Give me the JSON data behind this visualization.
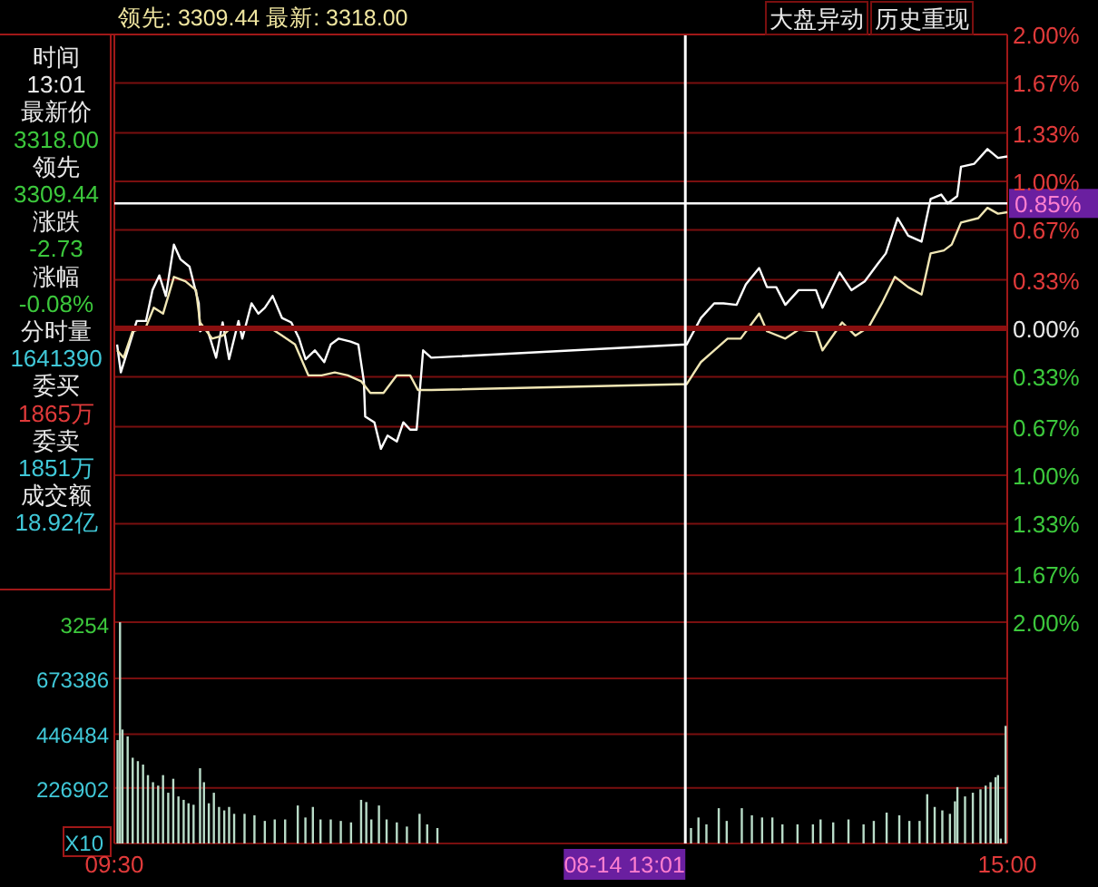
{
  "chart_data": [
    {
      "type": "line",
      "title": "领先: 3309.44 最新: 3318.00",
      "annotations": [
        "大盘异动",
        "历史重现",
        "时间",
        "13:01",
        "最新价",
        "3318.00",
        "领先",
        "3309.44",
        "涨跌",
        "-2.73",
        "涨幅",
        "-0.08%",
        "分时量",
        "1641390",
        "委买",
        "1865万",
        "委卖",
        "1851万",
        "成交额",
        "18.92亿"
      ],
      "xlim": [
        9.5,
        15
      ],
      "ylim": [
        -2,
        2
      ],
      "tick_labels": "y",
      "grid": "y",
      "yticks": [
        {
          "value": 2,
          "label": "2.00%"
        },
        {
          "value": 1.67,
          "label": "1.67%"
        },
        {
          "value": 1.33,
          "label": "1.33%"
        },
        {
          "value": 1,
          "label": "1.00%"
        },
        {
          "value": 0.67,
          "label": "0.67%"
        },
        {
          "value": 0.33,
          "label": "0.33%"
        },
        {
          "value": 0,
          "label": "0.00%"
        },
        {
          "value": -0.33,
          "label": "0.33%"
        },
        {
          "value": -0.67,
          "label": "0.67%"
        },
        {
          "value": -1,
          "label": "1.00%"
        },
        {
          "value": -1.33,
          "label": "1.33%"
        },
        {
          "value": -1.67,
          "label": "1.67%"
        },
        {
          "value": -2,
          "label": "2.00%"
        }
      ],
      "ref_lines": [
        {
          "axis": "y",
          "value": 0,
          "color": "#8b1010"
        },
        {
          "axis": "y",
          "value": 0.85,
          "label": "0.85%",
          "color": "#ffffff"
        },
        {
          "axis": "x",
          "value": 13.017,
          "color": "#ffffff"
        }
      ],
      "series": [
        {
          "color": "#ffffff",
          "x": [
            9.517,
            9.54,
            9.582,
            9.638,
            9.695,
            9.735,
            9.777,
            9.817,
            9.867,
            9.907,
            9.963,
            10.02,
            10.028,
            10.068,
            10.127,
            10.167,
            10.207,
            10.265,
            10.288,
            10.345,
            10.387,
            10.427,
            10.475,
            10.533,
            10.59,
            10.638,
            10.678,
            10.735,
            10.793,
            10.833,
            10.882,
            10.955,
            11.003,
            11.037,
            11.045,
            11.102,
            11.142,
            11.183,
            11.24,
            11.28,
            11.322,
            11.362,
            11.402,
            11.452,
            13.025,
            13.113,
            13.195,
            13.252,
            13.333,
            13.39,
            13.472,
            13.52,
            13.577,
            13.633,
            13.715,
            13.822,
            13.862,
            13.967,
            14.04,
            14.122,
            14.203,
            14.252,
            14.325,
            14.39,
            14.472,
            14.528,
            14.593,
            14.633,
            14.692,
            14.715,
            14.797,
            14.878,
            14.943,
            15
          ],
          "values": [
            -0.11,
            -0.3,
            -0.15,
            0.05,
            0.05,
            0.26,
            0.36,
            0.22,
            0.57,
            0.47,
            0.42,
            0.17,
            -0.02,
            0.01,
            -0.2,
            0.04,
            -0.21,
            0.05,
            -0.07,
            0.17,
            0.1,
            0.14,
            0.22,
            0.07,
            0.04,
            -0.07,
            -0.21,
            -0.15,
            -0.23,
            -0.11,
            -0.07,
            -0.09,
            -0.11,
            -0.36,
            -0.6,
            -0.64,
            -0.82,
            -0.73,
            -0.77,
            -0.64,
            -0.69,
            -0.69,
            -0.15,
            -0.2,
            -0.11,
            0.07,
            0.17,
            0.17,
            0.16,
            0.3,
            0.41,
            0.28,
            0.28,
            0.16,
            0.26,
            0.26,
            0.14,
            0.38,
            0.26,
            0.32,
            0.44,
            0.51,
            0.75,
            0.63,
            0.59,
            0.88,
            0.91,
            0.85,
            0.9,
            1.1,
            1.12,
            1.22,
            1.16,
            1.17
          ]
        },
        {
          "color": "#f0e6b4",
          "x": [
            9.517,
            9.557,
            9.613,
            9.695,
            9.743,
            9.8,
            9.867,
            9.938,
            10.003,
            10.028,
            10.102,
            10.167,
            10.223,
            10.288,
            10.353,
            10.452,
            10.533,
            10.613,
            10.695,
            10.777,
            10.858,
            10.938,
            11.02,
            11.077,
            11.158,
            11.24,
            11.322,
            11.37,
            11.452,
            13.025,
            13.113,
            13.195,
            13.277,
            13.358,
            13.472,
            13.52,
            13.633,
            13.715,
            13.822,
            13.862,
            13.983,
            14.065,
            14.147,
            14.228,
            14.308,
            14.39,
            14.472,
            14.528,
            14.61,
            14.658,
            14.715,
            14.822,
            14.878,
            14.943,
            15
          ],
          "values": [
            -0.15,
            -0.2,
            -0.02,
            0.01,
            0.14,
            0.1,
            0.35,
            0.32,
            0.26,
            0.04,
            -0.07,
            -0.05,
            0.01,
            -0.01,
            0.01,
            0.01,
            -0.05,
            -0.11,
            -0.32,
            -0.32,
            -0.3,
            -0.32,
            -0.36,
            -0.44,
            -0.44,
            -0.32,
            -0.32,
            -0.42,
            -0.42,
            -0.38,
            -0.23,
            -0.15,
            -0.07,
            -0.07,
            0.1,
            -0.02,
            -0.07,
            -0.01,
            -0.02,
            -0.15,
            0.04,
            -0.05,
            0.01,
            0.17,
            0.35,
            0.28,
            0.23,
            0.51,
            0.53,
            0.57,
            0.72,
            0.75,
            0.82,
            0.78,
            0.79
          ]
        }
      ]
    },
    {
      "type": "bar",
      "xlim": [
        9.5,
        15
      ],
      "ylim": [
        0,
        903254
      ],
      "grid": "y",
      "annotations": [
        "3254"
      ],
      "xticks": [
        {
          "value": 9.5,
          "label": "09:30"
        },
        {
          "value": 15,
          "label": "15:00"
        }
      ],
      "yticks": [
        {
          "value": 0,
          "label": "X10"
        },
        {
          "value": 226902,
          "label": "226902"
        },
        {
          "value": 446484,
          "label": "446484"
        },
        {
          "value": 673386,
          "label": "673386"
        }
      ],
      "ref_lines": [
        {
          "axis": "x",
          "value": 13.017,
          "label": "08-14 13:01",
          "color": "#ffffff"
        }
      ],
      "series": [
        {
          "color": "#b9dcc8",
          "x": [
            9.52,
            9.535,
            9.55,
            9.582,
            9.613,
            9.645,
            9.677,
            9.707,
            9.738,
            9.77,
            9.8,
            9.832,
            9.863,
            9.895,
            9.927,
            9.957,
            9.988,
            10.028,
            10.052,
            10.082,
            10.113,
            10.145,
            10.177,
            10.207,
            10.238,
            10.302,
            10.363,
            10.427,
            10.488,
            10.552,
            10.63,
            10.677,
            10.723,
            10.77,
            10.833,
            10.895,
            10.958,
            11.02,
            11.052,
            11.083,
            11.13,
            11.177,
            11.24,
            11.302,
            11.38,
            11.427,
            11.49,
            13.052,
            13.098,
            13.147,
            13.223,
            13.272,
            13.365,
            13.427,
            13.49,
            13.553,
            13.615,
            13.708,
            13.803,
            13.85,
            13.928,
            14.022,
            14.115,
            14.178,
            14.257,
            14.335,
            14.397,
            14.46,
            14.507,
            14.553,
            14.6,
            14.647,
            14.678,
            14.693,
            14.74,
            14.788,
            14.835,
            14.867,
            14.897,
            14.928,
            14.943,
            14.96,
            14.99
          ],
          "values": [
            422000,
            903000,
            465000,
            437000,
            350000,
            336000,
            322000,
            279000,
            250000,
            236000,
            279000,
            207000,
            264000,
            192000,
            178000,
            164000,
            158000,
            307000,
            250000,
            164000,
            207000,
            149000,
            135000,
            149000,
            121000,
            121000,
            115000,
            92000,
            98000,
            98000,
            155000,
            106000,
            149000,
            98000,
            98000,
            92000,
            86000,
            178000,
            169000,
            98000,
            155000,
            98000,
            86000,
            69000,
            121000,
            78000,
            63000,
            63000,
            106000,
            78000,
            144000,
            92000,
            144000,
            115000,
            106000,
            106000,
            78000,
            78000,
            78000,
            98000,
            86000,
            98000,
            78000,
            92000,
            126000,
            115000,
            92000,
            92000,
            201000,
            149000,
            135000,
            121000,
            172000,
            230000,
            192000,
            207000,
            221000,
            236000,
            250000,
            270000,
            279000,
            20000,
            480000
          ]
        }
      ]
    }
  ]
}
